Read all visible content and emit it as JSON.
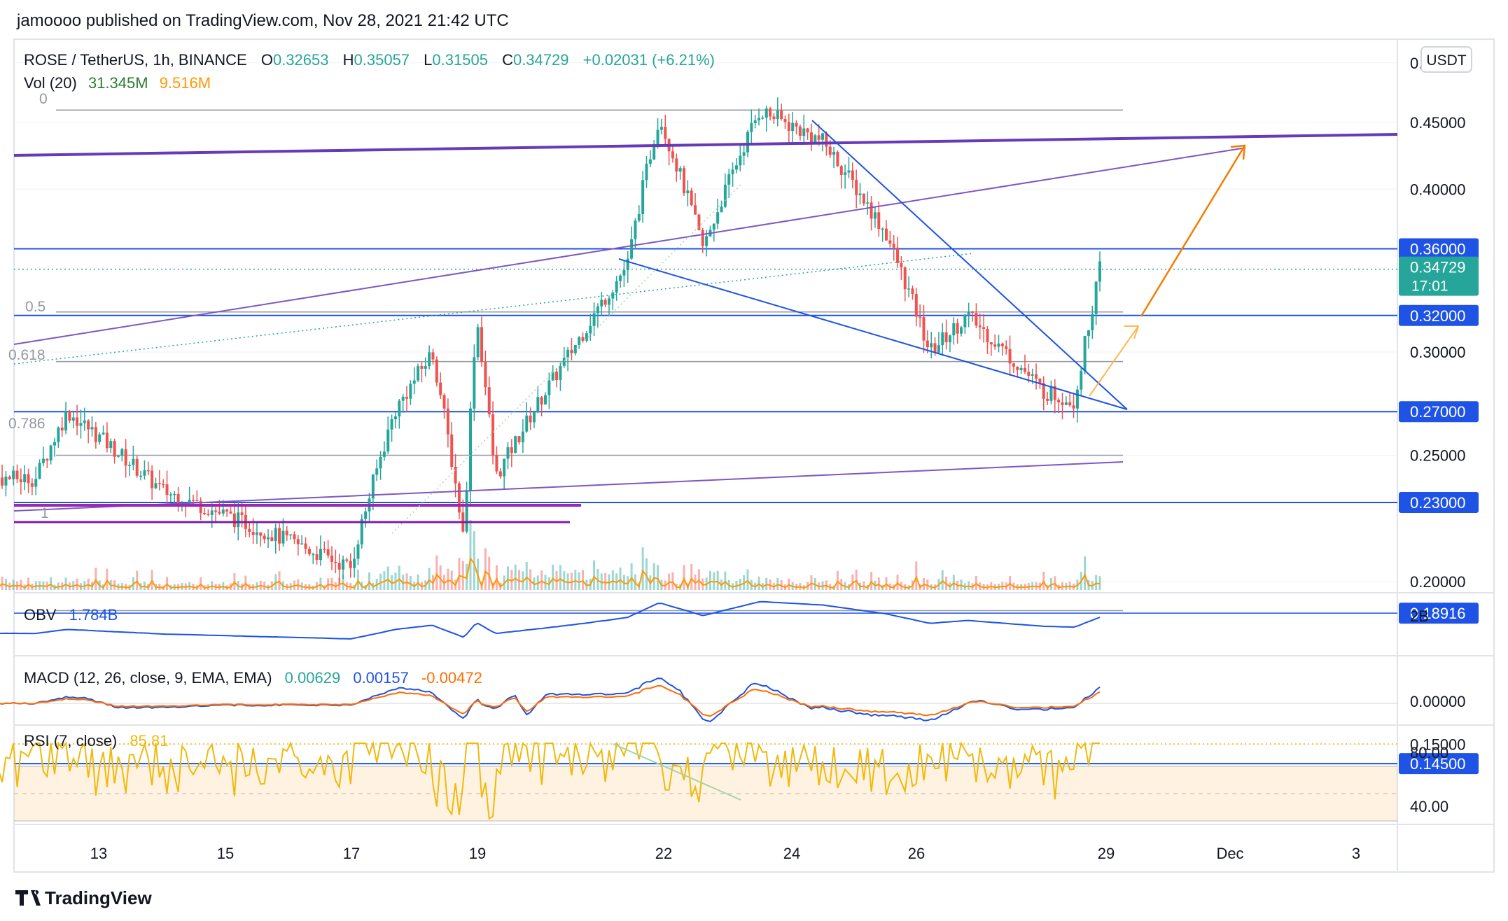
{
  "header": {
    "publisher": "jamoooo published on TradingView.com, Nov 28, 2021 21:42 UTC"
  },
  "legend": {
    "symbol": "ROSE / TetherUS, 1h, BINANCE",
    "o_label": "O",
    "o_value": "0.32653",
    "h_label": "H",
    "h_value": "0.35057",
    "l_label": "L",
    "l_value": "0.31505",
    "c_label": "C",
    "c_value": "0.34729",
    "change": "+0.02031 (+6.21%)",
    "vol_label": "Vol (20)",
    "vol_value": "31.345M",
    "vol_ma": "9.516M"
  },
  "currency_button": "USDT",
  "indicators": {
    "obv": {
      "label": "OBV",
      "value": "1.784B",
      "axis_label": "2B"
    },
    "macd": {
      "label": "MACD (12, 26, close, 9, EMA, EMA)",
      "v1": "0.00629",
      "v2": "0.00157",
      "v3": "-0.00472",
      "axis_label": "0.00000"
    },
    "rsi": {
      "label": "RSI (7, close)",
      "value": "85.81",
      "axis_labels": [
        "80.00",
        "40.00"
      ]
    }
  },
  "fib_labels": [
    "0",
    "0.5",
    "0.618",
    "0.786",
    "1"
  ],
  "price_axis_labels": [
    "0.50000",
    "0.45000",
    "0.40000",
    "0.30000",
    "0.25000",
    "0.20000",
    "0.15000"
  ],
  "price_badges": [
    {
      "label": "0.36000",
      "color": "#1e53e5"
    },
    {
      "label": "0.32000",
      "color": "#1e53e5"
    },
    {
      "label": "0.27000",
      "color": "#1e53e5"
    },
    {
      "label": "0.23000",
      "color": "#1e53e5"
    },
    {
      "label": "0.18916",
      "color": "#1e53e5"
    },
    {
      "label": "0.14500",
      "color": "#1e53e5"
    },
    {
      "label": "0.34729",
      "sublabel": "17:01",
      "color": "#26a69a"
    }
  ],
  "time_axis_labels": [
    "13",
    "15",
    "17",
    "19",
    "22",
    "24",
    "26",
    "29",
    "Dec",
    "3"
  ],
  "footer": {
    "brand": "TradingView",
    "logo": "tradingview-logo"
  },
  "colors": {
    "up": "#26a69a",
    "down": "#ef5350",
    "line_blue": "#1e53e5",
    "purple": "#7e57c2",
    "orange": "#ff9800",
    "rsi": "#f0b90b"
  },
  "chart_data": {
    "type": "candlestick",
    "title": "ROSE / TetherUS, 1h, BINANCE",
    "ylim": [
      0.145,
      0.5
    ],
    "y_scale": "log",
    "x_range": [
      "Nov 11",
      "Dec 3"
    ],
    "horizontal_levels": [
      0.36,
      0.32,
      0.27,
      0.23,
      0.18916,
      0.145
    ],
    "fibonacci_levels": [
      {
        "label": "0",
        "price": 0.46
      },
      {
        "label": "0.5",
        "price": 0.322
      },
      {
        "label": "0.618",
        "price": 0.295
      },
      {
        "label": "0.786",
        "price": 0.25
      },
      {
        "label": "1",
        "price": 0.19
      }
    ],
    "last_close": 0.34729,
    "ohlc_last": {
      "o": 0.32653,
      "h": 0.35057,
      "l": 0.31505,
      "c": 0.34729
    },
    "price_path_approx": [
      {
        "t": "Nov 12",
        "price": 0.24
      },
      {
        "t": "Nov 12.5",
        "price": 0.27
      },
      {
        "t": "Nov 14",
        "price": 0.235
      },
      {
        "t": "Nov 16",
        "price": 0.215
      },
      {
        "t": "Nov 17",
        "price": 0.205
      },
      {
        "t": "Nov 17.7",
        "price": 0.27
      },
      {
        "t": "Nov 18.3",
        "price": 0.3
      },
      {
        "t": "Nov 18.8",
        "price": 0.215
      },
      {
        "t": "Nov 19",
        "price": 0.32
      },
      {
        "t": "Nov 19.3",
        "price": 0.24
      },
      {
        "t": "Nov 20.5",
        "price": 0.3
      },
      {
        "t": "Nov 21.4",
        "price": 0.35
      },
      {
        "t": "Nov 21.9",
        "price": 0.455
      },
      {
        "t": "Nov 22.6",
        "price": 0.36
      },
      {
        "t": "Nov 23.5",
        "price": 0.46
      },
      {
        "t": "Nov 24.5",
        "price": 0.435
      },
      {
        "t": "Nov 25.5",
        "price": 0.37
      },
      {
        "t": "Nov 26.2",
        "price": 0.3
      },
      {
        "t": "Nov 26.8",
        "price": 0.32
      },
      {
        "t": "Nov 28",
        "price": 0.28
      },
      {
        "t": "Nov 28.5",
        "price": 0.275
      },
      {
        "t": "Nov 28.9",
        "price": 0.347
      }
    ],
    "indicators_last": {
      "obv": "1.784B",
      "macd": [
        0.00629,
        0.00157,
        -0.00472
      ],
      "rsi": 85.81
    },
    "rsi_bands": [
      30,
      70
    ],
    "grid": true
  }
}
